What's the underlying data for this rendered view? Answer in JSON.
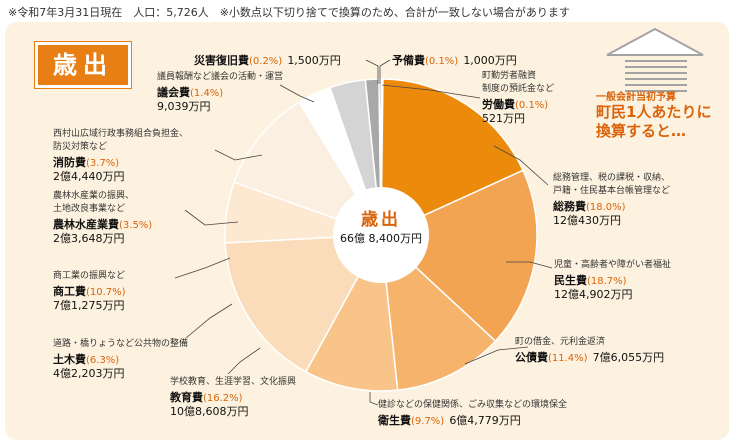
{
  "note": "※令和7年3月31日現在　人口：5,726人　※小数点以下切り捨てで換算のため、合計が一致しない場合があります",
  "badge": "歳出",
  "center": {
    "title": "歳出",
    "total": "66億 8,400万円"
  },
  "promo": {
    "line1": "一般会計当初予算",
    "line2": "町民1人あたりに",
    "line3": "換算すると…"
  },
  "colors": {
    "accent": "#e87f14",
    "panel": "#fdf2df"
  },
  "labels": {
    "somu": {
      "desc1": "総務管理、税の課税・収納、",
      "desc2": "戸籍・住民基本台帳管理など",
      "name": "総務費",
      "pct": "(18.0%)",
      "amount": "12億430万円"
    },
    "minsei": {
      "desc1": "児童・高齢者や障がい者福祉",
      "name": "民生費",
      "pct": "(18.7%)",
      "amount": "12億4,902万円"
    },
    "kosai": {
      "desc1": "町の借金、元利金返済",
      "name": "公債費",
      "pct": "(11.4%)",
      "amount": "7億6,055万円"
    },
    "eisei": {
      "desc1": "健診などの保健関係、ごみ収集などの環境保全",
      "name": "衛生費",
      "pct": "(9.7%)",
      "amount": "6億4,779万円"
    },
    "kyoiku": {
      "desc1": "学校教育、生涯学習、文化振興",
      "name": "教育費",
      "pct": "(16.2%)",
      "amount": "10億8,608万円"
    },
    "doboku": {
      "desc1": "道路・橋りょうなど公共物の整備",
      "name": "土木費",
      "pct": "(6.3%)",
      "amount": "4億2,203万円"
    },
    "shoko": {
      "desc1": "商工業の振興など",
      "name": "商工費",
      "pct": "(10.7%)",
      "amount": "7億1,275万円"
    },
    "norin": {
      "desc1": "農林水産業の振興、",
      "desc2": "土地改良事業など",
      "name": "農林水産業費",
      "pct": "(3.5%)",
      "amount": "2億3,648万円"
    },
    "shobo": {
      "desc1": "西村山広域行政事務組合負担金、",
      "desc2": "防災対策など",
      "name": "消防費",
      "pct": "(3.7%)",
      "amount": "2億4,440万円"
    },
    "gikai": {
      "desc1": "議員報酬など議会の活動・運営",
      "name": "議会費",
      "pct": "(1.4%)",
      "amount": "9,039万円"
    },
    "saigai": {
      "name": "災害復旧費",
      "pct": "(0.2%)",
      "amount": "1,500万円"
    },
    "yobi": {
      "name": "予備費",
      "pct": "(0.1%)",
      "amount": "1,000万円"
    },
    "rodo": {
      "desc1": "町勤労者融資",
      "desc2": "制度の預託金など",
      "name": "労働費",
      "pct": "(0.1%)",
      "amount": "521万円"
    }
  },
  "chart_data": {
    "type": "pie",
    "title": "歳出",
    "total": "66億 8,400万円",
    "slices": [
      {
        "name": "予備費",
        "percent": 0.1,
        "amount_man_yen": 1000,
        "color": "#f6d9b4"
      },
      {
        "name": "労働費",
        "percent": 0.1,
        "amount_man_yen": 521,
        "color": "#f6d9b4"
      },
      {
        "name": "総務費",
        "percent": 18.0,
        "amount_man_yen": 120430,
        "color": "#ec8a0c"
      },
      {
        "name": "民生費",
        "percent": 18.7,
        "amount_man_yen": 124902,
        "color": "#f3a452"
      },
      {
        "name": "公債費",
        "percent": 11.4,
        "amount_man_yen": 76055,
        "color": "#f5b36c"
      },
      {
        "name": "衛生費",
        "percent": 9.7,
        "amount_man_yen": 64779,
        "color": "#f8c489"
      },
      {
        "name": "教育費",
        "percent": 16.2,
        "amount_man_yen": 108608,
        "color": "#fbdcba"
      },
      {
        "name": "土木費",
        "percent": 6.3,
        "amount_man_yen": 42203,
        "color": "#fde8d2"
      },
      {
        "name": "商工費",
        "percent": 10.7,
        "amount_man_yen": 71275,
        "color": "#fbefe2"
      },
      {
        "name": "農林水産業費",
        "percent": 3.5,
        "amount_man_yen": 23648,
        "color": "#ffffff"
      },
      {
        "name": "消防費",
        "percent": 3.7,
        "amount_man_yen": 24440,
        "color": "#d4d4d4"
      },
      {
        "name": "議会費",
        "percent": 1.4,
        "amount_man_yen": 9039,
        "color": "#a8a8a8"
      },
      {
        "name": "災害復旧費",
        "percent": 0.2,
        "amount_man_yen": 1500,
        "color": "#7a7a7a"
      }
    ]
  }
}
